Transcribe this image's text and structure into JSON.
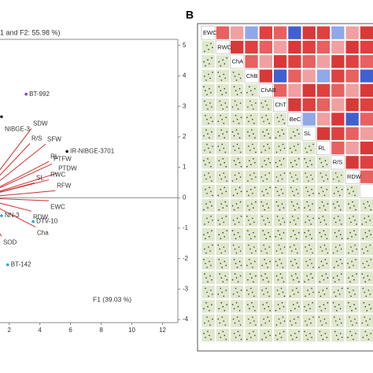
{
  "chart_data": [
    {
      "type": "biplot",
      "title": "1 and F2: 55.98 %)",
      "x_label": "F1 (39.03 %)",
      "xlim": [
        1.4,
        13.0
      ],
      "ylim": [
        -4.1,
        5.2
      ],
      "xticks": [
        2,
        4,
        6,
        8,
        10,
        12
      ],
      "yticks": [
        -4,
        -3,
        -2,
        -1,
        0,
        1,
        2,
        3,
        4,
        5
      ],
      "vector_color": "#d03030",
      "vectors": [
        {
          "name": "SDW",
          "x": 3.45,
          "y": 2.27
        },
        {
          "name": "R/S",
          "x": 3.35,
          "y": 1.78
        },
        {
          "name": "SFW",
          "x": 4.38,
          "y": 1.76
        },
        {
          "name": "RL",
          "x": 4.59,
          "y": 1.19
        },
        {
          "name": "PTFW",
          "x": 4.79,
          "y": 1.11
        },
        {
          "name": "PTDW",
          "x": 5.1,
          "y": 0.8
        },
        {
          "name": "SL",
          "x": 3.66,
          "y": 0.49
        },
        {
          "name": "RWC",
          "x": 4.59,
          "y": 0.59
        },
        {
          "name": "RFW",
          "x": 5.0,
          "y": 0.23
        },
        {
          "name": "EWC",
          "x": 4.59,
          "y": -0.1
        },
        {
          "name": "RDW",
          "x": 3.45,
          "y": -0.44
        },
        {
          "name": "Cha",
          "x": 3.71,
          "y": -0.96
        },
        {
          "name": "SOD",
          "x": 1.5,
          "y": -1.27
        }
      ],
      "points": [
        {
          "name": "BT-992",
          "x": 3.1,
          "y": 3.4,
          "color": "#8040c0"
        },
        {
          "name": "NIBGE-3",
          "x": 1.5,
          "y": 2.66,
          "color": "#222222"
        },
        {
          "name": "IR-NIBGE-3701",
          "x": 5.77,
          "y": 1.52,
          "color": "#222222"
        },
        {
          "name": "NN-3",
          "x": 1.5,
          "y": -0.59,
          "color": "#2aa8d8"
        },
        {
          "name": "DTV-10",
          "x": 3.56,
          "y": -0.78,
          "color": "#2aa8d8"
        },
        {
          "name": "BT-142",
          "x": 1.9,
          "y": -2.2,
          "color": "#2aa8d8"
        }
      ]
    },
    {
      "type": "correlation-matrix",
      "panel_label": "B",
      "variables": [
        "EWC",
        "RWC",
        "ChA",
        "ChB",
        "ChAB",
        "ChT",
        "BeC",
        "SL",
        "RL",
        "R/S",
        "RDW"
      ]
    }
  ]
}
